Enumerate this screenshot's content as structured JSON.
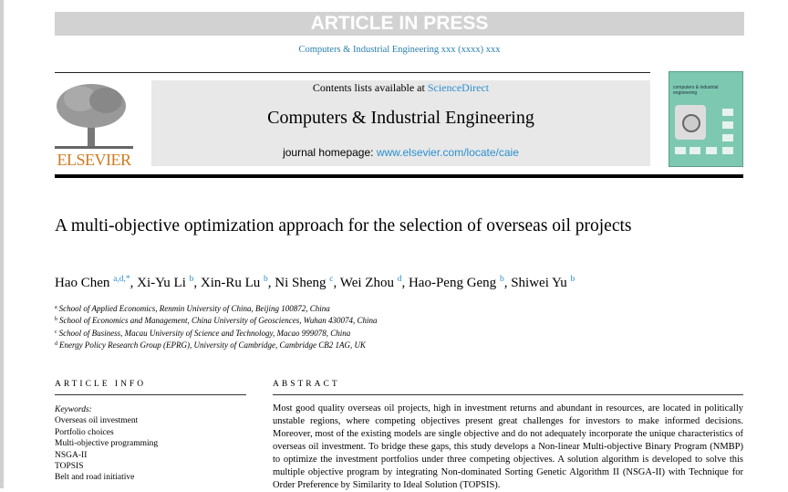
{
  "banner": "ARTICLE IN PRESS",
  "journal_ref": "Computers & Industrial Engineering xxx (xxxx) xxx",
  "header": {
    "contents_prefix": "Contents lists available at ",
    "contents_link": "ScienceDirect",
    "journal_title": "Computers & Industrial Engineering",
    "homepage_prefix": "journal homepage: ",
    "homepage_link": "www.elsevier.com/locate/caie",
    "publisher_logo": "ELSEVIER",
    "cover_title": "computers & industrial engineering"
  },
  "article": {
    "title": "A multi-objective optimization approach for the selection of overseas oil projects",
    "authors": [
      {
        "name": "Hao Chen",
        "aff": "a,d,*"
      },
      {
        "name": "Xi-Yu Li",
        "aff": "b"
      },
      {
        "name": "Xin-Ru Lu",
        "aff": "b"
      },
      {
        "name": "Ni Sheng",
        "aff": "c"
      },
      {
        "name": "Wei Zhou",
        "aff": "d"
      },
      {
        "name": "Hao-Peng Geng",
        "aff": "b"
      },
      {
        "name": "Shiwei Yu",
        "aff": "b"
      }
    ],
    "affiliations": [
      {
        "key": "a",
        "text": "School of Applied Economics, Renmin University of China, Beijing 100872, China"
      },
      {
        "key": "b",
        "text": "School of Economics and Management, China University of Geosciences, Wuhan 430074, China"
      },
      {
        "key": "c",
        "text": "School of Business, Macau University of Science and Technology, Macao 999078, China"
      },
      {
        "key": "d",
        "text": "Energy Policy Research Group (EPRG), University of Cambridge, Cambridge CB2 1AG, UK"
      }
    ]
  },
  "article_info": {
    "heading": "ARTICLE INFO",
    "keywords_label": "Keywords:",
    "keywords": [
      "Overseas oil investment",
      "Portfolio choices",
      "Multi-objective programming",
      "NSGA-II",
      "TOPSIS",
      "Belt and road initiative"
    ]
  },
  "abstract": {
    "heading": "ABSTRACT",
    "text": "Most good quality overseas oil projects, high in investment returns and abundant in resources, are located in politically unstable regions, where competing objectives present great challenges for investors to make informed decisions. Moreover, most of the existing models are single objective and do not adequately incorporate the unique characteristics of overseas oil investment. To bridge these gaps, this study develops a Non-linear Multi-objective Binary Program (NMBP) to optimize the investment portfolios under three competing objectives. A solution algorithm is developed to solve this multiple objective program by integrating Non-dominated Sorting Genetic Algorithm II (NSGA-II) with Technique for Order Preference by Similarity to Ideal Solution (TOPSIS)."
  }
}
